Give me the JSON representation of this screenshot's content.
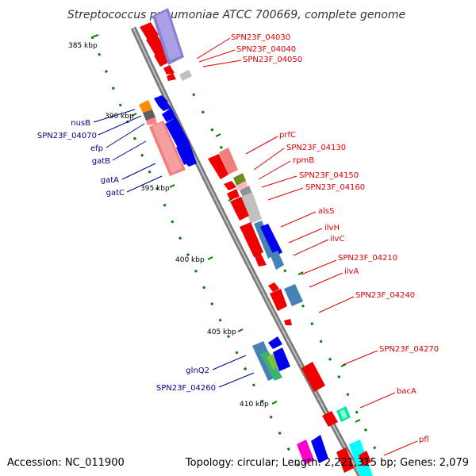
{
  "title": "Streptococcus pneumoniae ATCC 700669, complete genome",
  "accession": "Accession: NC_011900",
  "summary": "Topology: circular; Length: 2,221,315 bp; Genes: 2,079",
  "colors": {
    "backbone": "#888888",
    "forward_label": "#dd0000",
    "reverse_label": "#00008b",
    "tick_dots": "#008000"
  },
  "ticks": [
    "385 kbp",
    "390 kbp",
    "395 kbp",
    "400 kbp",
    "405 kbp",
    "410 kbp"
  ],
  "forward_labels": [
    "SPN23F_04030",
    "SPN23F_04040",
    "SPN23F_04050",
    "prfC",
    "SPN23F_04130",
    "rpmB",
    "SPN23F_04150",
    "SPN23F_04160",
    "alsS",
    "ilvH",
    "ilvC",
    "SPN23F_04210",
    "ilvA",
    "SPN23F_04240",
    "SPN23F_04270",
    "bacA",
    "pfl"
  ],
  "reverse_labels": [
    "nusB",
    "SPN23F_04070",
    "efp",
    "gatB",
    "gatA",
    "gatC",
    "glnQ2",
    "SPN23F_04260"
  ]
}
